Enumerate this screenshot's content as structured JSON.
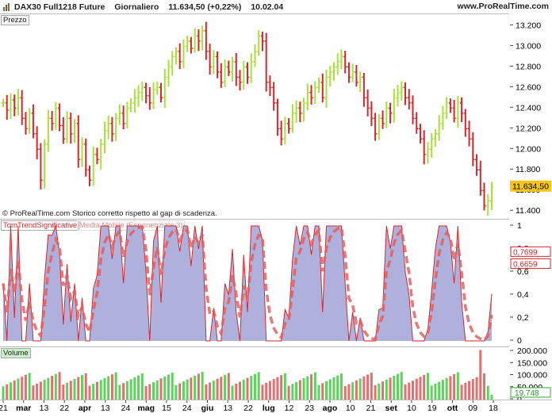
{
  "header": {
    "title": "DAX30 Full1218 Future",
    "period": "Giornaliero",
    "quote": "11.634,50 (+0,22%)",
    "time": "10.02.04",
    "brand": "www.ProRealTime.com"
  },
  "price_panel": {
    "label": "Prezzo",
    "copyright": "© ProRealTime.com  Storico corretto rispetto al gap di scadenza.",
    "ticks": [
      "13.200",
      "13.000",
      "12.800",
      "12.600",
      "12.400",
      "12.200",
      "12.000",
      "11.800",
      "11.600",
      "11.400"
    ],
    "last_value": "11.634,50"
  },
  "indicator_panel": {
    "label1": "TomTrendSignificative",
    "label2": "Media Mobile (Esponenziale 3)",
    "ticks": [
      "1",
      "0,8",
      "0,6",
      "0,4",
      "0,2",
      "0"
    ],
    "value1": "0,7699",
    "value2": "0,6659"
  },
  "volume_panel": {
    "label": "Volume",
    "ticks": [
      "200.000",
      "150.000",
      "100.000",
      "50.000",
      "0"
    ],
    "last_value": "19.748"
  },
  "xaxis": [
    "21",
    "mar",
    "13",
    "22",
    "apr",
    "13",
    "24",
    "mag",
    "15",
    "24",
    "giu",
    "13",
    "22",
    "lug",
    "12",
    "23",
    "ago",
    "10",
    "21",
    "set",
    "10",
    "19",
    "ott",
    "09",
    "18"
  ],
  "colors": {
    "up": "#a9e03a",
    "down": "#d8262b",
    "area": "#b0b0dd",
    "ema": "#e06060",
    "vol_up": "#5dd35d",
    "vol_down": "#e37070",
    "price_box": "#f5c518"
  },
  "chart_data": {
    "type": "candlestick",
    "title": "DAX30 Full1218 Future",
    "price_ylim": [
      11340,
      13280
    ],
    "indicator_ylim": [
      0,
      1
    ],
    "volume_ylim": [
      0,
      210000
    ],
    "indicator_last": [
      0.7699,
      0.6659
    ],
    "volume_last": 19748,
    "closes": [
      12450,
      12380,
      12480,
      12400,
      12500,
      12300,
      12200,
      12350,
      12150,
      12000,
      11700,
      12050,
      12300,
      12250,
      12400,
      12230,
      12100,
      12300,
      12150,
      12250,
      11900,
      12050,
      11800,
      11700,
      11950,
      11900,
      12050,
      12180,
      12250,
      12150,
      12300,
      12350,
      12250,
      12400,
      12450,
      12500,
      12550,
      12600,
      12520,
      12450,
      12580,
      12600,
      12500,
      12700,
      12800,
      12900,
      12950,
      12850,
      13000,
      13050,
      12980,
      13100,
      13050,
      13150,
      12950,
      12800,
      12900,
      12750,
      12650,
      12800,
      12750,
      12850,
      12700,
      12650,
      12800,
      12700,
      12850,
      12950,
      13100,
      13050,
      12650,
      12600,
      12450,
      12200,
      12100,
      12250,
      12200,
      12350,
      12400,
      12350,
      12450,
      12550,
      12500,
      12600,
      12650,
      12500,
      12700,
      12750,
      12800,
      12850,
      12900,
      12800,
      12700,
      12750,
      12650,
      12700,
      12500,
      12400,
      12300,
      12150,
      12300,
      12250,
      12400,
      12350,
      12500,
      12550,
      12600,
      12500,
      12450,
      12300,
      12200,
      12100,
      11950,
      12000,
      12100,
      12150,
      12250,
      12350,
      12450,
      12400,
      12300,
      12450,
      12350,
      12200,
      12100,
      11900,
      11800,
      11600,
      11450,
      11500,
      11634
    ]
  }
}
